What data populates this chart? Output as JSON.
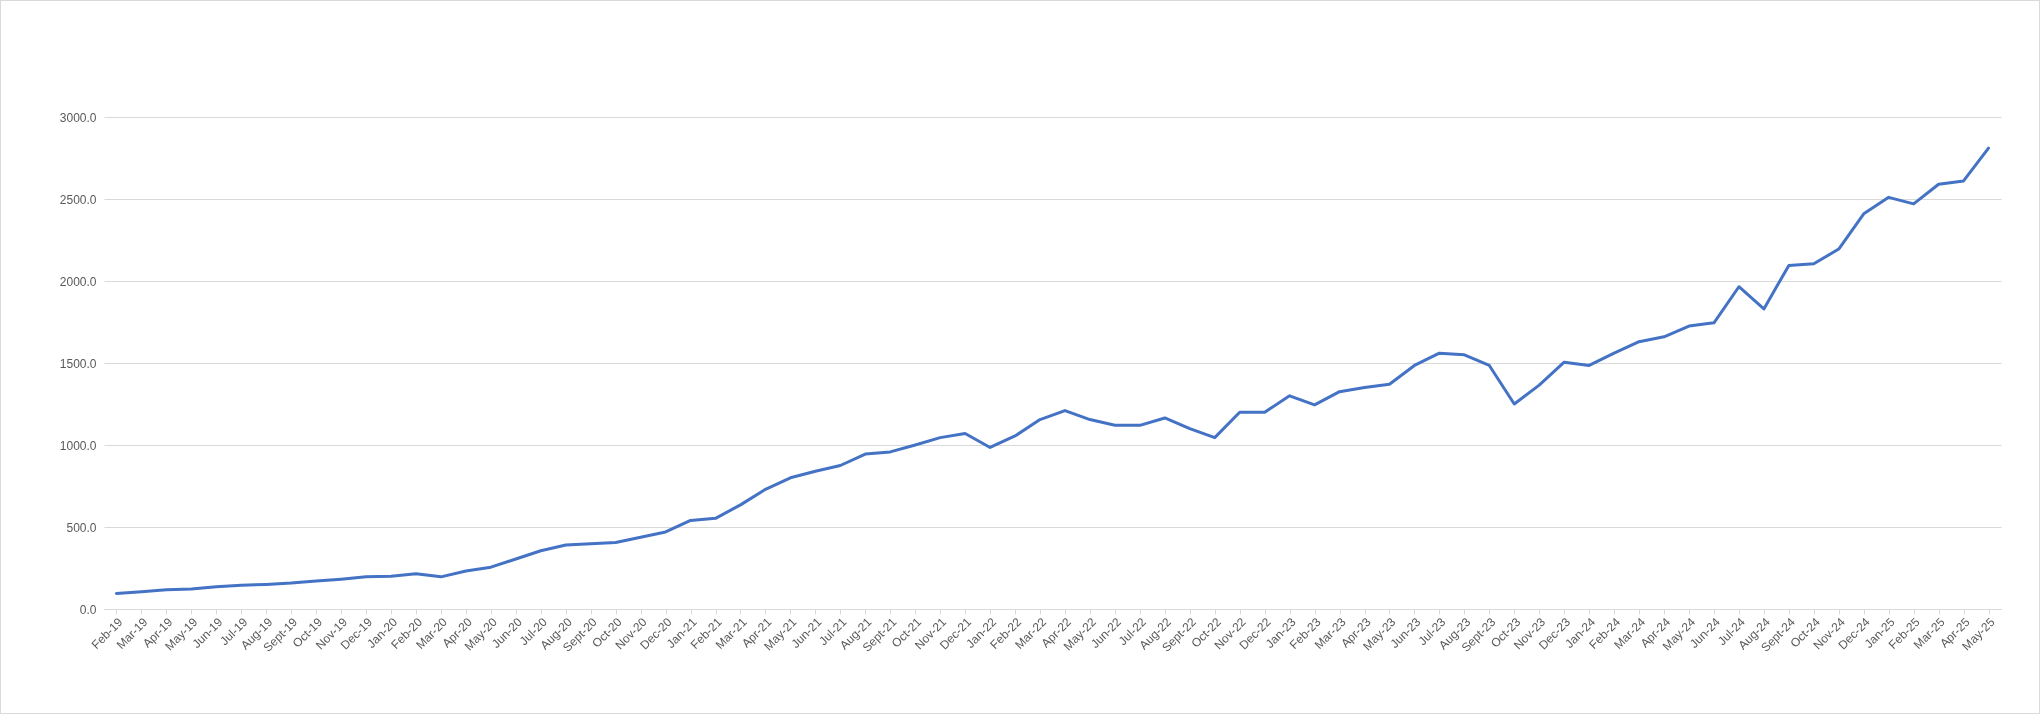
{
  "chart_data": {
    "type": "line",
    "categories": [
      "Feb-19",
      "Mar-19",
      "Apr-19",
      "May-19",
      "Jun-19",
      "Jul-19",
      "Aug-19",
      "Sept-19",
      "Oct-19",
      "Nov-19",
      "Dec-19",
      "Jan-20",
      "Feb-20",
      "Mar-20",
      "Apr-20",
      "May-20",
      "Jun-20",
      "Jul-20",
      "Aug-20",
      "Sept-20",
      "Oct-20",
      "Nov-20",
      "Dec-20",
      "Jan-21",
      "Feb-21",
      "Mar-21",
      "Apr-21",
      "May-21",
      "Jun-21",
      "Jul-21",
      "Aug-21",
      "Sept-21",
      "Oct-21",
      "Nov-21",
      "Dec-21",
      "Jan-22",
      "Feb-22",
      "Mar-22",
      "Apr-22",
      "May-22",
      "Jun-22",
      "Jul-22",
      "Aug-22",
      "Sept-22",
      "Oct-22",
      "Nov-22",
      "Dec-22",
      "Jan-23",
      "Feb-23",
      "Mar-23",
      "Apr-23",
      "May-23",
      "Jun-23",
      "Jul-23",
      "Aug-23",
      "Sept-23",
      "Oct-23",
      "Nov-23",
      "Dec-23",
      "Jan-24",
      "Feb-24",
      "Mar-24",
      "Apr-24",
      "May-24",
      "Jun-24",
      "Jul-24",
      "Aug-24",
      "Sept-24",
      "Oct-24",
      "Nov-24",
      "Dec-24",
      "Jan-25",
      "Feb-25",
      "Mar-25",
      "Apr-25",
      "May-25"
    ],
    "series": [
      {
        "color": "#4472c4",
        "values": [
          95,
          105,
          118,
          122,
          135,
          145,
          150,
          158,
          170,
          182,
          196,
          200,
          215,
          196,
          232,
          255,
          305,
          355,
          390,
          398,
          405,
          437,
          470,
          540,
          553,
          635,
          730,
          800,
          840,
          875,
          945,
          958,
          1000,
          1045,
          1070,
          985,
          1055,
          1155,
          1210,
          1155,
          1120,
          1120,
          1165,
          1100,
          1045,
          1200,
          1200,
          1300,
          1245,
          1325,
          1350,
          1370,
          1485,
          1560,
          1550,
          1485,
          1250,
          1365,
          1505,
          1485,
          1560,
          1630,
          1660,
          1725,
          1745,
          1965,
          1830,
          2095,
          2105,
          2195,
          2410,
          2510,
          2470,
          2590,
          2610,
          2810
        ]
      }
    ],
    "ylim": [
      0,
      3000
    ],
    "yticks": [
      {
        "value": 0,
        "label": "0.0"
      },
      {
        "value": 500,
        "label": "500.0"
      },
      {
        "value": 1000,
        "label": "1000.0"
      },
      {
        "value": 1500,
        "label": "1500.0"
      },
      {
        "value": 2000,
        "label": "2000.0"
      },
      {
        "value": 2500,
        "label": "2500.0"
      },
      {
        "value": 3000,
        "label": "3000.0"
      }
    ],
    "grid": "y",
    "legend": false,
    "marker": "none",
    "line_style": "solid"
  }
}
